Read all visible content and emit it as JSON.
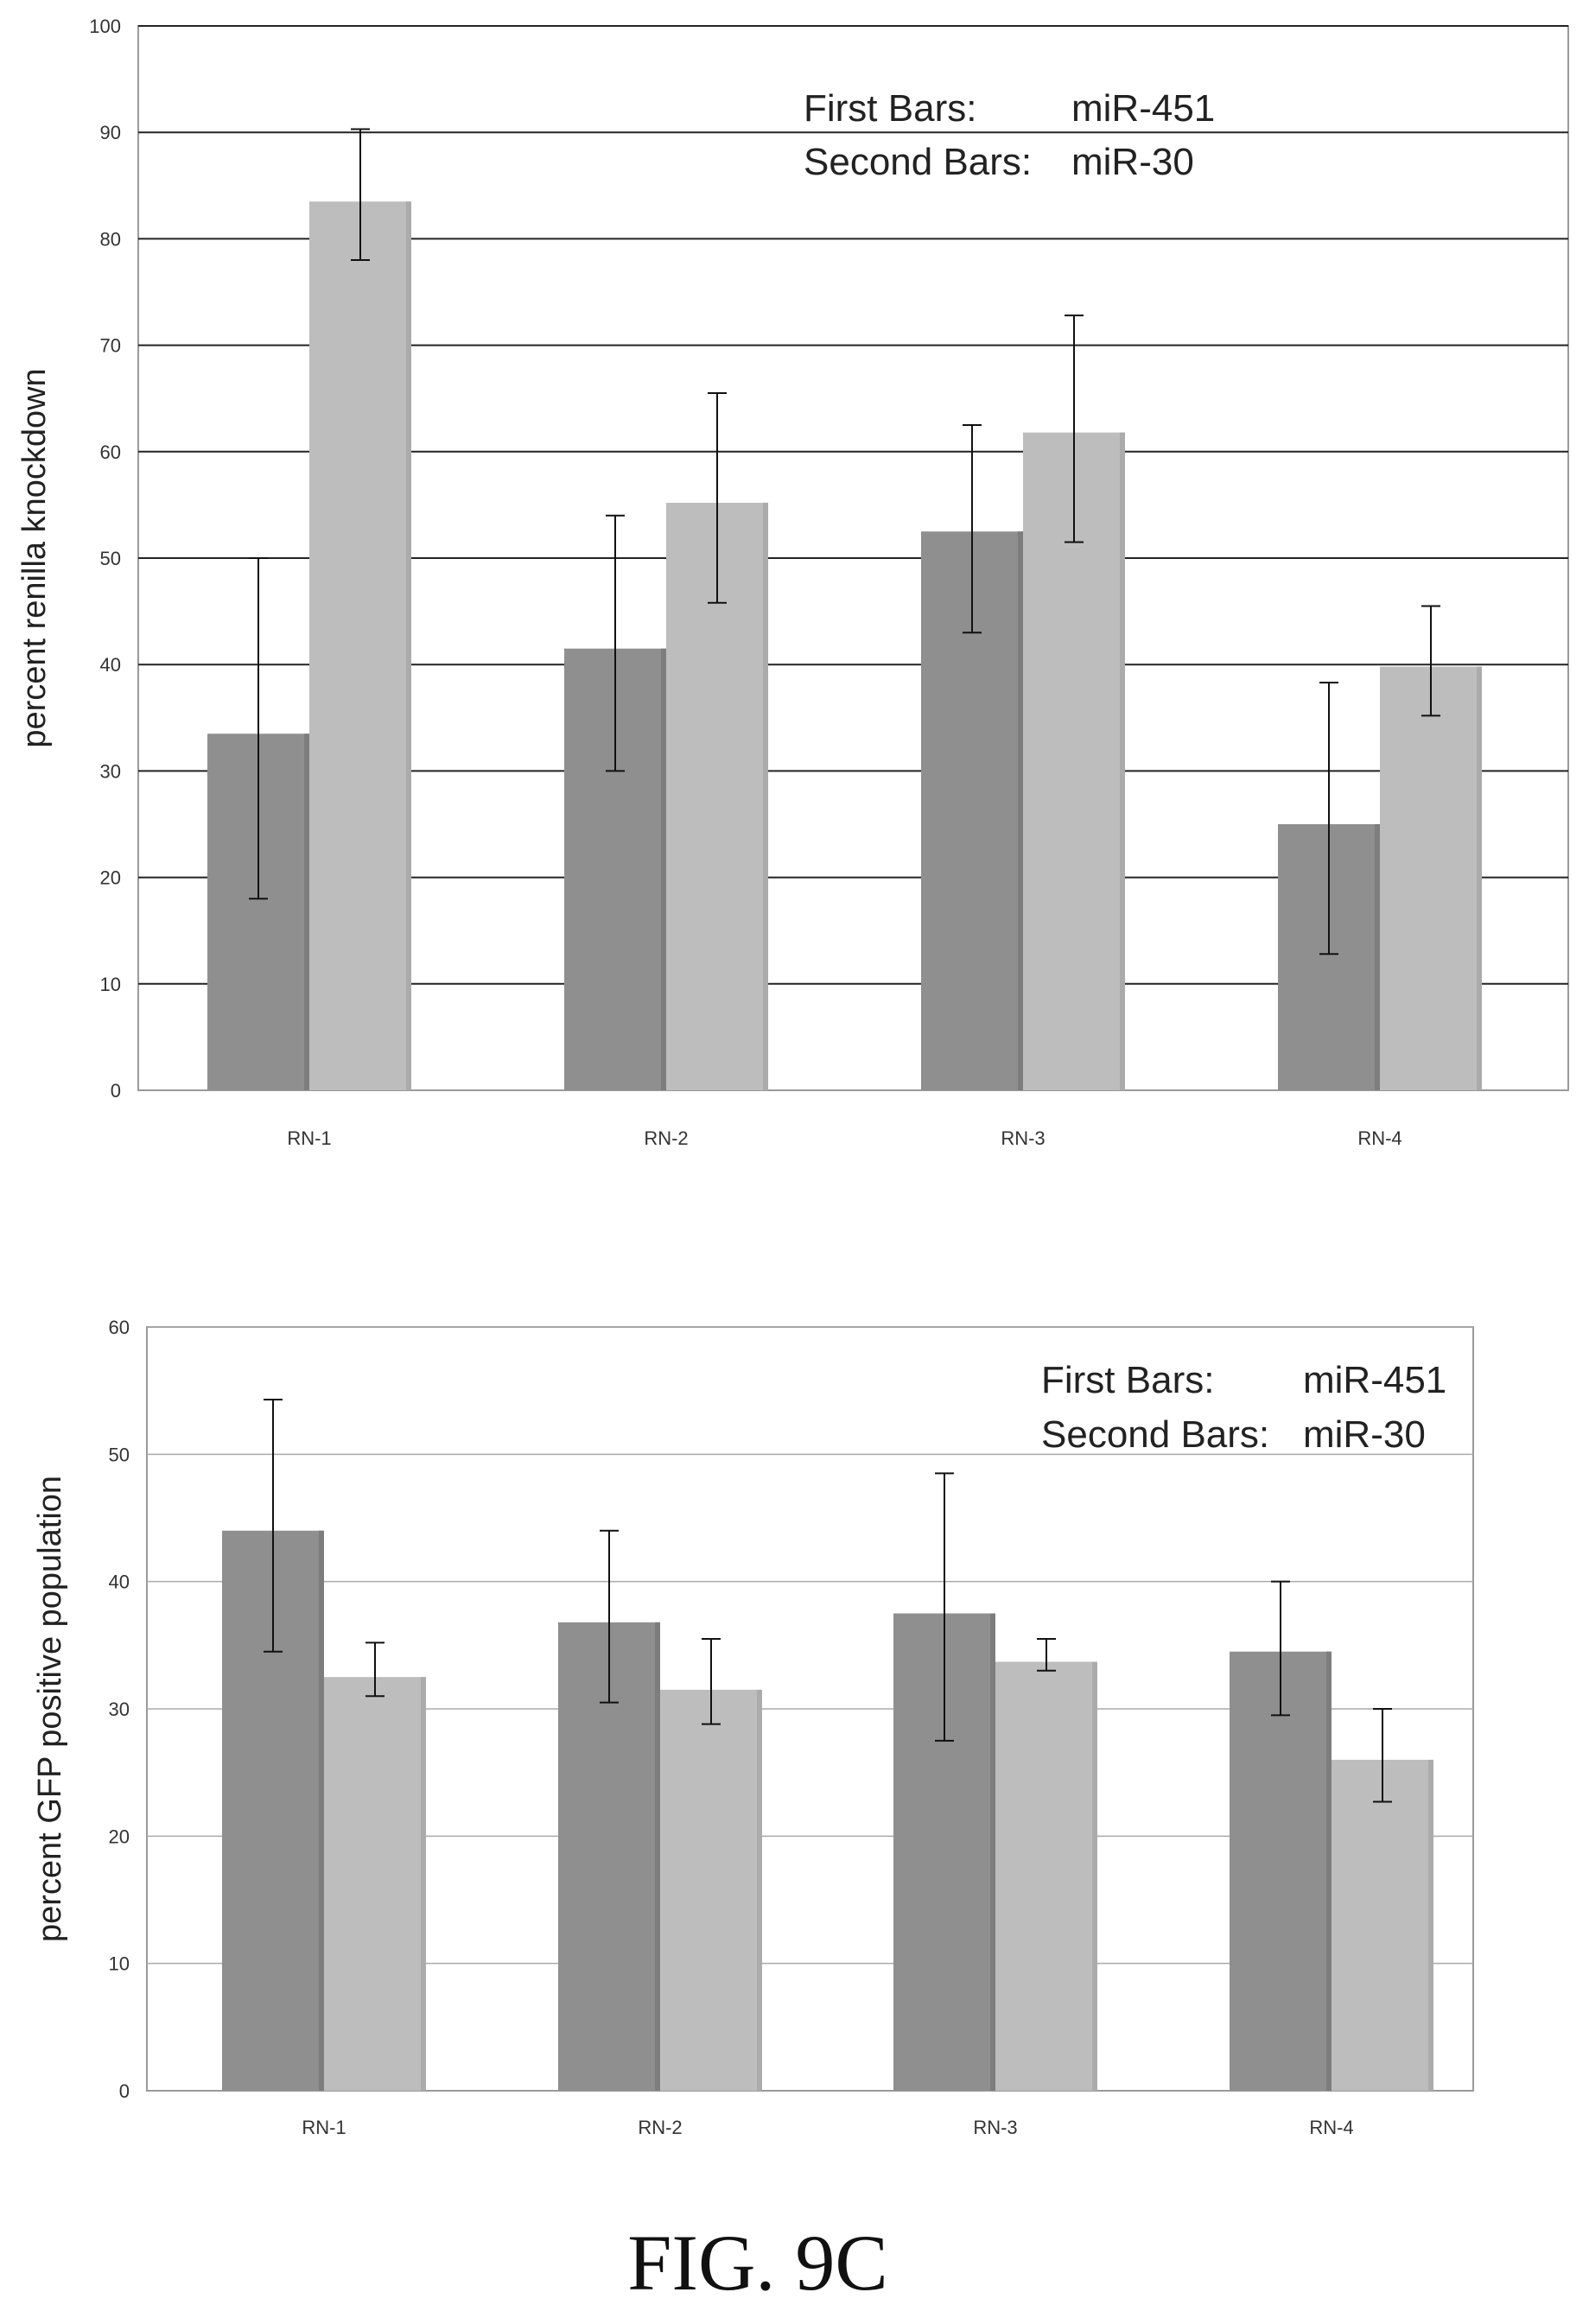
{
  "caption": "FIG. 9C",
  "chart_data": [
    {
      "type": "bar",
      "title": "",
      "xlabel": "",
      "ylabel": "percent renilla knockdown",
      "ylim": [
        0,
        100
      ],
      "yticks": [
        0,
        10,
        20,
        30,
        40,
        50,
        60,
        70,
        80,
        90,
        100
      ],
      "grid": true,
      "categories": [
        "RN-1",
        "RN-2",
        "RN-3",
        "RN-4"
      ],
      "legend_lines": [
        {
          "label": "First Bars:",
          "value": "miR-451"
        },
        {
          "label": "Second Bars:",
          "value": "miR-30"
        }
      ],
      "series": [
        {
          "values": [
            33.5,
            41.5,
            52.5,
            25.0
          ],
          "errors_low": [
            18.0,
            30.0,
            43.0,
            12.8
          ],
          "errors_high": [
            50.0,
            54.0,
            62.5,
            38.3
          ],
          "color": "#8f8f8f"
        },
        {
          "values": [
            83.5,
            55.2,
            61.8,
            39.8
          ],
          "errors_low": [
            78.0,
            45.8,
            51.5,
            35.2
          ],
          "errors_high": [
            90.3,
            65.5,
            72.8,
            45.5
          ],
          "color": "#bdbdbd"
        }
      ]
    },
    {
      "type": "bar",
      "title": "",
      "xlabel": "",
      "ylabel": "percent GFP positive population",
      "ylim": [
        0,
        60
      ],
      "yticks": [
        0,
        10,
        20,
        30,
        40,
        50,
        60
      ],
      "grid": true,
      "categories": [
        "RN-1",
        "RN-2",
        "RN-3",
        "RN-4"
      ],
      "legend_lines": [
        {
          "label": "First Bars:",
          "value": "miR-451"
        },
        {
          "label": "Second Bars:",
          "value": "miR-30"
        }
      ],
      "series": [
        {
          "values": [
            44.0,
            36.8,
            37.5,
            34.5
          ],
          "errors_low": [
            34.5,
            30.5,
            27.5,
            29.5
          ],
          "errors_high": [
            54.3,
            44.0,
            48.5,
            40.0
          ],
          "color": "#8f8f8f"
        },
        {
          "values": [
            32.5,
            31.5,
            33.7,
            26.0
          ],
          "errors_low": [
            31.0,
            28.8,
            33.0,
            22.7
          ],
          "errors_high": [
            35.2,
            35.5,
            35.5,
            30.0
          ],
          "color": "#bdbdbd"
        }
      ]
    }
  ]
}
